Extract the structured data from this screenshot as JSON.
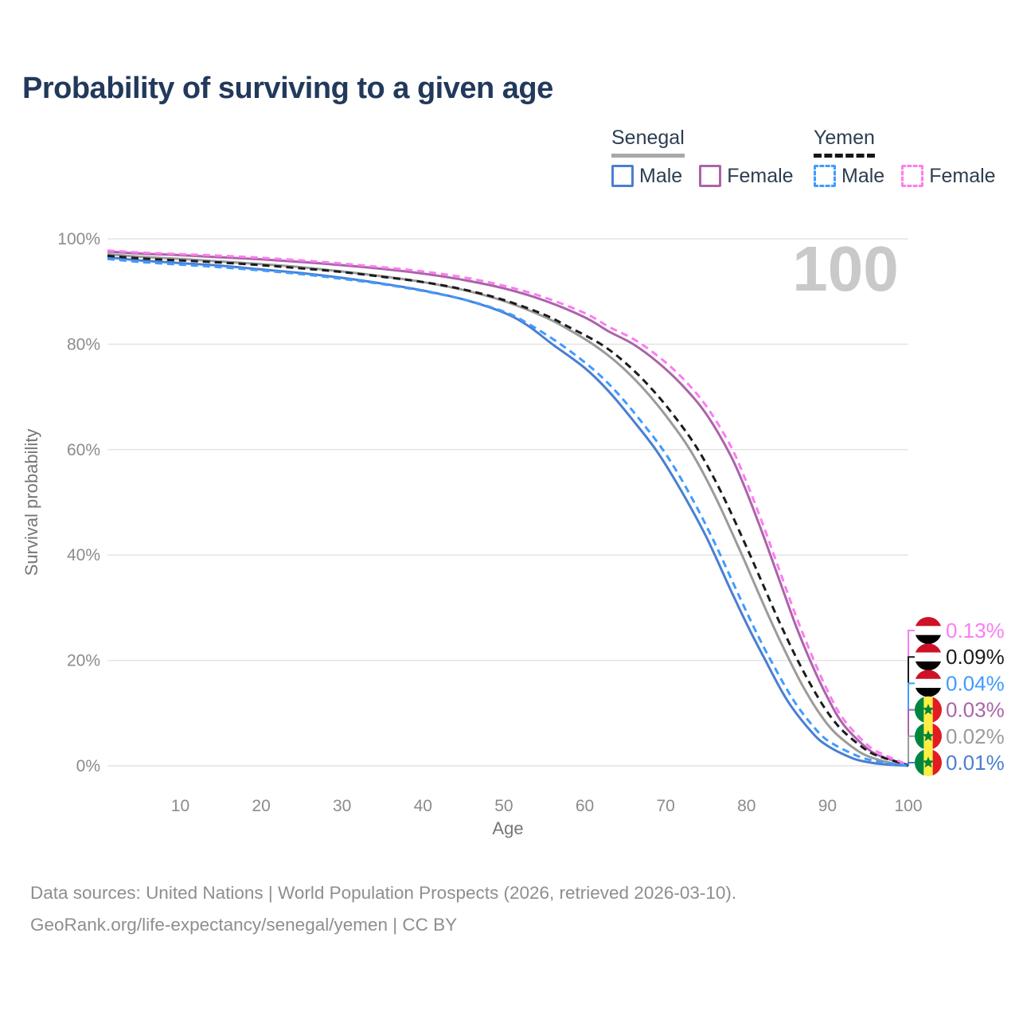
{
  "title": "Probability of surviving to a given age",
  "legend": {
    "groups": [
      {
        "label": "Senegal",
        "underline_style": "solid",
        "underline_color": "#a8a8a8",
        "items": [
          {
            "label": "Male",
            "color": "#4a7ed2",
            "box_style": "solid"
          },
          {
            "label": "Female",
            "color": "#ab63a9",
            "box_style": "solid"
          }
        ]
      },
      {
        "label": "Yemen",
        "underline_style": "dashed",
        "underline_color": "#161616",
        "items": [
          {
            "label": "Male",
            "color": "#3f9bff",
            "box_style": "dashed"
          },
          {
            "label": "Female",
            "color": "#fb7df1",
            "box_style": "dashed"
          }
        ]
      }
    ]
  },
  "footer": {
    "line1": "Data sources: United Nations | World Population Prospects (2026, retrieved 2026-03-10).",
    "line2": "GeoRank.org/life-expectancy/senegal/yemen | CC BY"
  },
  "chart_data": {
    "type": "line",
    "title": "Probability of surviving to a given age",
    "xlabel": "Age",
    "ylabel": "Survival probability",
    "watermark": "100",
    "watermark_color": "#c9c9c9",
    "grid_color": "#e4e4e4",
    "axis_tick_color": "#8b8b8b",
    "axis_title_color": "#767676",
    "xlim": [
      1,
      100
    ],
    "ylim": [
      0,
      100
    ],
    "x_ticks": [
      10,
      20,
      30,
      40,
      50,
      60,
      70,
      80,
      90,
      100
    ],
    "y_ticks": [
      0,
      20,
      40,
      60,
      80,
      100
    ],
    "y_tick_suffix": "%",
    "legend_position": "top-right",
    "grid": true,
    "series": [
      {
        "id": "senegal-both",
        "name": "Senegal",
        "color": "#9b9b9b",
        "dash": "solid",
        "points": [
          [
            1,
            97.1
          ],
          [
            5,
            96.6
          ],
          [
            10,
            96.2
          ],
          [
            15,
            95.7
          ],
          [
            20,
            95.2
          ],
          [
            25,
            94.6
          ],
          [
            30,
            93.8
          ],
          [
            35,
            92.9
          ],
          [
            40,
            91.8
          ],
          [
            45,
            90.3
          ],
          [
            50,
            88.2
          ],
          [
            55,
            85.2
          ],
          [
            58,
            82.8
          ],
          [
            61,
            80.0
          ],
          [
            64,
            76.5
          ],
          [
            67,
            72.0
          ],
          [
            70,
            66.5
          ],
          [
            73,
            60.0
          ],
          [
            76,
            51.5
          ],
          [
            79,
            41.5
          ],
          [
            81,
            34.5
          ],
          [
            83,
            27.5
          ],
          [
            85,
            21.0
          ],
          [
            87,
            15.0
          ],
          [
            89,
            10.0
          ],
          [
            91,
            6.2
          ],
          [
            94,
            2.6
          ],
          [
            96,
            1.3
          ],
          [
            98,
            0.5
          ],
          [
            100,
            0.02
          ]
        ]
      },
      {
        "id": "senegal-female",
        "name": "Senegal Female",
        "color": "#ab63a9",
        "dash": "solid",
        "points": [
          [
            1,
            97.6
          ],
          [
            5,
            97.2
          ],
          [
            10,
            96.9
          ],
          [
            15,
            96.5
          ],
          [
            20,
            96.1
          ],
          [
            25,
            95.6
          ],
          [
            30,
            95.0
          ],
          [
            35,
            94.3
          ],
          [
            40,
            93.4
          ],
          [
            45,
            92.2
          ],
          [
            50,
            90.6
          ],
          [
            55,
            88.3
          ],
          [
            60,
            85.1
          ],
          [
            63,
            82.4
          ],
          [
            66,
            80.0
          ],
          [
            69,
            76.6
          ],
          [
            72,
            72.3
          ],
          [
            75,
            66.8
          ],
          [
            78,
            59.0
          ],
          [
            80,
            52.0
          ],
          [
            82,
            44.0
          ],
          [
            84,
            35.5
          ],
          [
            86,
            27.0
          ],
          [
            88,
            19.5
          ],
          [
            90,
            13.0
          ],
          [
            92,
            7.8
          ],
          [
            95,
            3.2
          ],
          [
            97,
            1.6
          ],
          [
            99,
            0.6
          ],
          [
            100,
            0.03
          ]
        ]
      },
      {
        "id": "senegal-male",
        "name": "Senegal Male",
        "color": "#4a7ed2",
        "dash": "solid",
        "points": [
          [
            1,
            96.5
          ],
          [
            5,
            95.9
          ],
          [
            10,
            95.4
          ],
          [
            15,
            94.9
          ],
          [
            20,
            94.2
          ],
          [
            25,
            93.5
          ],
          [
            30,
            92.6
          ],
          [
            35,
            91.5
          ],
          [
            40,
            90.2
          ],
          [
            45,
            88.5
          ],
          [
            50,
            86.0
          ],
          [
            53,
            83.5
          ],
          [
            56,
            80.0
          ],
          [
            60,
            75.5
          ],
          [
            63,
            71.0
          ],
          [
            66,
            65.5
          ],
          [
            69,
            59.5
          ],
          [
            72,
            52.0
          ],
          [
            75,
            43.5
          ],
          [
            78,
            33.5
          ],
          [
            80,
            27.0
          ],
          [
            82,
            21.0
          ],
          [
            85,
            12.5
          ],
          [
            88,
            6.5
          ],
          [
            90,
            3.8
          ],
          [
            93,
            1.5
          ],
          [
            95,
            0.7
          ],
          [
            97,
            0.3
          ],
          [
            100,
            0.01
          ]
        ]
      },
      {
        "id": "yemen-both",
        "name": "Yemen",
        "color": "#1c1c1c",
        "dash": "dashed",
        "points": [
          [
            1,
            96.8
          ],
          [
            5,
            96.3
          ],
          [
            10,
            95.9
          ],
          [
            15,
            95.5
          ],
          [
            20,
            95.0
          ],
          [
            25,
            94.4
          ],
          [
            30,
            93.7
          ],
          [
            35,
            92.8
          ],
          [
            40,
            91.8
          ],
          [
            45,
            90.4
          ],
          [
            50,
            88.4
          ],
          [
            55,
            85.6
          ],
          [
            58,
            83.3
          ],
          [
            62,
            80.0
          ],
          [
            65,
            76.5
          ],
          [
            68,
            72.0
          ],
          [
            71,
            66.5
          ],
          [
            74,
            60.0
          ],
          [
            77,
            51.5
          ],
          [
            80,
            41.5
          ],
          [
            82,
            34.5
          ],
          [
            84,
            27.5
          ],
          [
            86,
            21.0
          ],
          [
            88,
            15.2
          ],
          [
            90,
            10.2
          ],
          [
            92,
            6.5
          ],
          [
            95,
            2.8
          ],
          [
            97,
            1.5
          ],
          [
            99,
            0.6
          ],
          [
            100,
            0.09
          ]
        ]
      },
      {
        "id": "yemen-female",
        "name": "Yemen Female",
        "color": "#fb7df1",
        "dash": "dashed",
        "points": [
          [
            1,
            97.8
          ],
          [
            5,
            97.4
          ],
          [
            10,
            97.1
          ],
          [
            15,
            96.8
          ],
          [
            20,
            96.4
          ],
          [
            25,
            95.9
          ],
          [
            30,
            95.3
          ],
          [
            35,
            94.6
          ],
          [
            40,
            93.8
          ],
          [
            45,
            92.7
          ],
          [
            50,
            91.1
          ],
          [
            55,
            88.9
          ],
          [
            60,
            85.9
          ],
          [
            63,
            83.3
          ],
          [
            66,
            81.0
          ],
          [
            69,
            77.8
          ],
          [
            72,
            73.7
          ],
          [
            75,
            68.3
          ],
          [
            78,
            60.8
          ],
          [
            80,
            53.8
          ],
          [
            82,
            45.9
          ],
          [
            84,
            37.4
          ],
          [
            86,
            28.9
          ],
          [
            88,
            21.2
          ],
          [
            90,
            14.3
          ],
          [
            92,
            8.8
          ],
          [
            95,
            3.9
          ],
          [
            97,
            2.1
          ],
          [
            99,
            0.8
          ],
          [
            100,
            0.13
          ]
        ]
      },
      {
        "id": "yemen-male",
        "name": "Yemen Male",
        "color": "#3f9bff",
        "dash": "dashed",
        "points": [
          [
            1,
            96.2
          ],
          [
            5,
            95.6
          ],
          [
            10,
            95.1
          ],
          [
            15,
            94.6
          ],
          [
            20,
            94.0
          ],
          [
            25,
            93.3
          ],
          [
            30,
            92.4
          ],
          [
            35,
            91.4
          ],
          [
            40,
            90.1
          ],
          [
            45,
            88.5
          ],
          [
            50,
            86.2
          ],
          [
            53,
            83.9
          ],
          [
            57,
            80.0
          ],
          [
            61,
            75.3
          ],
          [
            64,
            70.8
          ],
          [
            67,
            65.3
          ],
          [
            70,
            59.2
          ],
          [
            73,
            51.5
          ],
          [
            76,
            42.5
          ],
          [
            79,
            32.5
          ],
          [
            81,
            26.0
          ],
          [
            83,
            20.0
          ],
          [
            86,
            12.0
          ],
          [
            89,
            6.2
          ],
          [
            91,
            3.9
          ],
          [
            94,
            1.7
          ],
          [
            96,
            0.9
          ],
          [
            98,
            0.4
          ],
          [
            100,
            0.04
          ]
        ]
      }
    ],
    "end_labels": [
      {
        "series": "yemen-female",
        "text": "0.13%",
        "flag": "yemen",
        "color": "#fb7df1"
      },
      {
        "series": "yemen-both",
        "text": "0.09%",
        "flag": "yemen",
        "color": "#1c1c1c"
      },
      {
        "series": "yemen-male",
        "text": "0.04%",
        "flag": "yemen",
        "color": "#3f9bff"
      },
      {
        "series": "senegal-female",
        "text": "0.03%",
        "flag": "senegal",
        "color": "#ab63a9"
      },
      {
        "series": "senegal-both",
        "text": "0.02%",
        "flag": "senegal",
        "color": "#9b9b9b"
      },
      {
        "series": "senegal-male",
        "text": "0.01%",
        "flag": "senegal",
        "color": "#4a7ed2"
      }
    ],
    "flags": {
      "yemen": {
        "orientation": "horizontal",
        "colors": [
          "#ce1126",
          "#ffffff",
          "#000000"
        ]
      },
      "senegal": {
        "orientation": "vertical",
        "colors": [
          "#00853f",
          "#fdef42",
          "#e31b23"
        ],
        "star_color": "#00853f"
      }
    }
  }
}
